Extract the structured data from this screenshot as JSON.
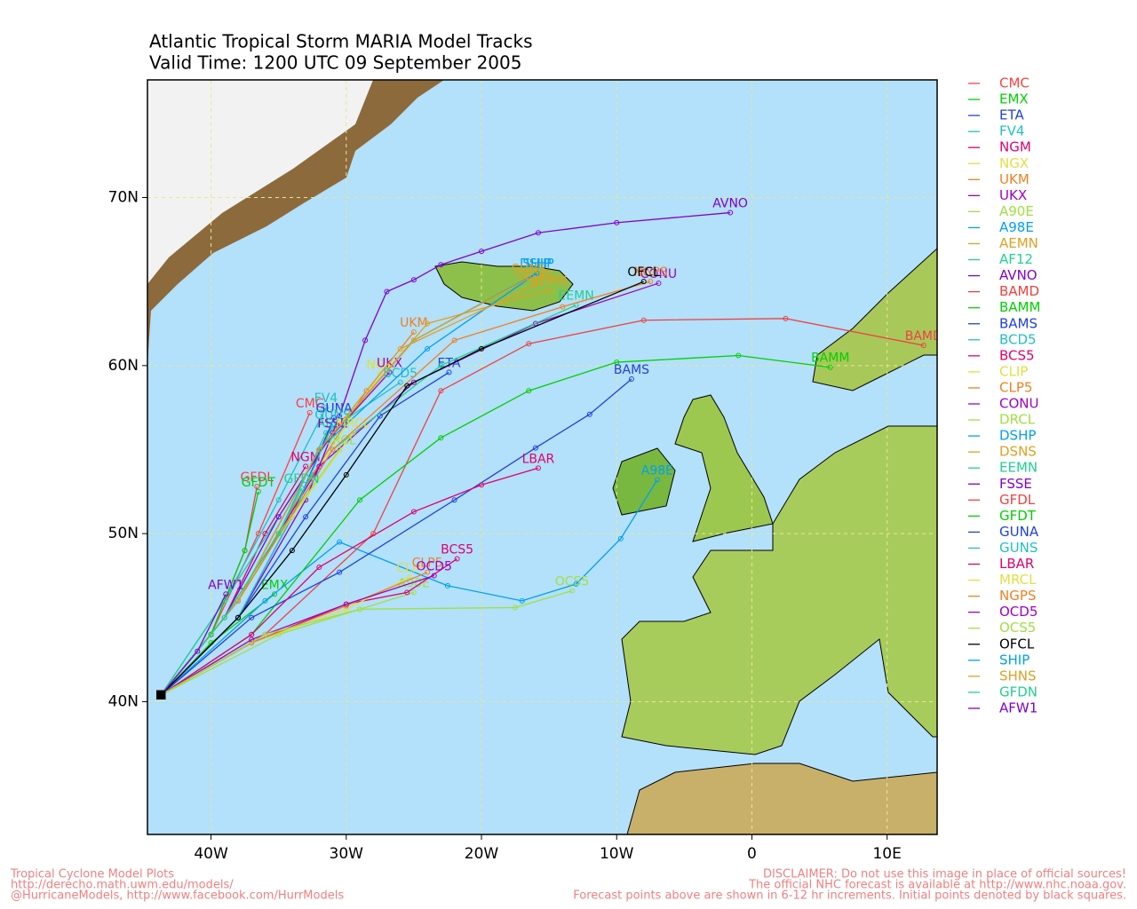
{
  "chart_data": {
    "type": "line",
    "title": "Atlantic Tropical Storm MARIA Model Tracks",
    "subtitle": "Valid Time: 1200 UTC 09 September 2005",
    "xlim": [
      -44.7,
      13.7
    ],
    "ylim": [
      32.1,
      77.0
    ],
    "xticks": [
      {
        "value": -40,
        "label": "40W"
      },
      {
        "value": -30,
        "label": "30W"
      },
      {
        "value": -20,
        "label": "20W"
      },
      {
        "value": -10,
        "label": "10W"
      },
      {
        "value": 0,
        "label": "0"
      },
      {
        "value": 10,
        "label": "10E"
      }
    ],
    "yticks": [
      {
        "value": 40,
        "label": "40N"
      },
      {
        "value": 50,
        "label": "50N"
      },
      {
        "value": 60,
        "label": "60N"
      },
      {
        "value": 70,
        "label": "70N"
      }
    ],
    "grid": true,
    "series": [
      {
        "name": "CMC",
        "color": "#ff4040",
        "x": [
          -43.7,
          -40,
          -36.5,
          -32.7
        ],
        "y": [
          40.4,
          44,
          50,
          57.2
        ]
      },
      {
        "name": "EMX",
        "color": "#00d000",
        "x": [
          -43.7,
          -40,
          -35.3
        ],
        "y": [
          40.4,
          43.5,
          46.4
        ]
      },
      {
        "name": "ETA",
        "color": "#2040e0",
        "x": [
          -43.7,
          -38,
          -33,
          -27.5,
          -22.4
        ],
        "y": [
          40.4,
          45,
          51,
          57,
          59.6
        ]
      },
      {
        "name": "FV4",
        "color": "#20c0c0",
        "x": [
          -43.7,
          -39,
          -35,
          -31.5
        ],
        "y": [
          40.4,
          46,
          52,
          57.5
        ]
      },
      {
        "name": "NGM",
        "color": "#e0006a",
        "x": [
          -43.7,
          -39,
          -36,
          -33
        ],
        "y": [
          40.4,
          45,
          50,
          54
        ]
      },
      {
        "name": "NGX",
        "color": "#e0e040",
        "x": [
          -43.7,
          -38,
          -32,
          -27.5
        ],
        "y": [
          40.4,
          46,
          54,
          59.5
        ]
      },
      {
        "name": "UKM",
        "color": "#f08020",
        "x": [
          -43.7,
          -38,
          -32.5,
          -28.5,
          -25
        ],
        "y": [
          40.4,
          46,
          53.5,
          58.5,
          62
        ]
      },
      {
        "name": "UKX",
        "color": "#a000c0",
        "x": [
          -43.7,
          -38,
          -32,
          -26.8
        ],
        "y": [
          40.4,
          46,
          55,
          59.6
        ]
      },
      {
        "name": "A90E",
        "color": "#a0e040",
        "x": [
          -43.7,
          -35,
          -29,
          -25
        ],
        "y": [
          40.4,
          44,
          45.5,
          46.5
        ]
      },
      {
        "name": "A98E",
        "color": "#00a0f0",
        "x": [
          -43.7,
          -36,
          -30.5,
          -22.5,
          -17,
          -13,
          -9.7,
          -7
        ],
        "y": [
          40.4,
          46,
          49.5,
          46.9,
          46,
          47,
          49.7,
          53.2
        ]
      },
      {
        "name": "AEMN",
        "color": "#e0a020",
        "x": [
          -43.7,
          -38,
          -32,
          -24,
          -15
        ],
        "y": [
          40.4,
          46,
          55,
          62.5,
          64.5
        ]
      },
      {
        "name": "AF12",
        "color": "#20d090",
        "x": [
          -43.7,
          -39,
          -35,
          -31
        ],
        "y": [
          40.4,
          46,
          51,
          56
        ]
      },
      {
        "name": "AVNO",
        "color": "#8000d0",
        "x": [
          -43.7,
          -38,
          -33,
          -30.5,
          -28.6,
          -27,
          -25,
          -23,
          -20,
          -15.8,
          -10,
          -1.6
        ],
        "y": [
          40.4,
          45,
          52,
          57,
          61.5,
          64.4,
          65.1,
          66,
          66.8,
          67.9,
          68.5,
          69.1
        ]
      },
      {
        "name": "BAMD",
        "color": "#f04040",
        "x": [
          -43.7,
          -36,
          -28,
          -23,
          -16.5,
          -8,
          2.5,
          12.7
        ],
        "y": [
          40.4,
          44,
          50,
          58.5,
          61.3,
          62.7,
          62.8,
          61.2
        ]
      },
      {
        "name": "BAMM",
        "color": "#00d000",
        "x": [
          -43.7,
          -37,
          -29,
          -23,
          -16.5,
          -10,
          -1,
          5.8
        ],
        "y": [
          40.4,
          44,
          52,
          55.7,
          58.5,
          60.2,
          60.6,
          59.9
        ]
      },
      {
        "name": "BAMS",
        "color": "#2040e0",
        "x": [
          -43.7,
          -37,
          -30.5,
          -22,
          -16,
          -12,
          -8.9
        ],
        "y": [
          40.4,
          45,
          47.7,
          52,
          55.1,
          57.1,
          59.2
        ]
      },
      {
        "name": "BCD5",
        "color": "#20c0c0",
        "x": [
          -43.7,
          -39,
          -35,
          -31.5,
          -26
        ],
        "y": [
          40.4,
          45,
          50,
          56,
          59
        ]
      },
      {
        "name": "BCS5",
        "color": "#e0006a",
        "x": [
          -43.7,
          -37,
          -30,
          -25.5,
          -21.8
        ],
        "y": [
          40.4,
          43.5,
          45.8,
          46.5,
          48.5
        ]
      },
      {
        "name": "CLIP",
        "color": "#e0e040",
        "x": [
          -43.7,
          -37,
          -30,
          -25.3
        ],
        "y": [
          40.4,
          43.5,
          45.5,
          47.4
        ]
      },
      {
        "name": "CLP5",
        "color": "#f08020",
        "x": [
          -43.7,
          -37,
          -30,
          -24
        ],
        "y": [
          40.4,
          43.5,
          45.7,
          47.7
        ]
      },
      {
        "name": "CONU",
        "color": "#a000c0",
        "x": [
          -43.7,
          -38,
          -32,
          -25,
          -16,
          -6.9
        ],
        "y": [
          40.4,
          46,
          54,
          59,
          62.5,
          64.9
        ]
      },
      {
        "name": "DRCL",
        "color": "#a0e040",
        "x": [
          -43.7,
          -39,
          -35,
          -30.5
        ],
        "y": [
          40.4,
          45,
          50,
          55
        ]
      },
      {
        "name": "DSHP",
        "color": "#00a0f0",
        "x": [
          -43.7,
          -38,
          -32,
          -24,
          -15.9
        ],
        "y": [
          40.4,
          46,
          55,
          61,
          65.5
        ]
      },
      {
        "name": "DSNS",
        "color": "#e0a020",
        "x": [
          -43.7,
          -38,
          -32,
          -26,
          -16
        ],
        "y": [
          40.4,
          46,
          55,
          61,
          64.8
        ]
      },
      {
        "name": "EEMN",
        "color": "#20d090",
        "x": [
          -43.7,
          -38,
          -31,
          -23,
          -13
        ],
        "y": [
          40.4,
          46,
          55,
          60,
          63.6
        ]
      },
      {
        "name": "FSSE",
        "color": "#8000d0",
        "x": [
          -43.7,
          -39,
          -35,
          -31
        ],
        "y": [
          40.4,
          45,
          51,
          56
        ]
      },
      {
        "name": "GFDL",
        "color": "#f04040",
        "x": [
          -43.7,
          -40,
          -37.5,
          -36.6
        ],
        "y": [
          40.4,
          44,
          49,
          52.8
        ]
      },
      {
        "name": "GFDT",
        "color": "#00d000",
        "x": [
          -43.7,
          -40,
          -37.5,
          -36.5
        ],
        "y": [
          40.4,
          44,
          49,
          52.5
        ]
      },
      {
        "name": "GUNA",
        "color": "#2040e0",
        "x": [
          -43.7,
          -38,
          -34,
          -30.9
        ],
        "y": [
          40.4,
          45,
          51,
          56.9
        ]
      },
      {
        "name": "GUNS",
        "color": "#20c0c0",
        "x": [
          -43.7,
          -38,
          -34,
          -31
        ],
        "y": [
          40.4,
          45,
          51,
          56.5
        ]
      },
      {
        "name": "LBAR",
        "color": "#e0006a",
        "x": [
          -43.7,
          -37,
          -32,
          -25,
          -20,
          -15.8
        ],
        "y": [
          40.4,
          44,
          48,
          51.3,
          52.9,
          53.9
        ]
      },
      {
        "name": "MRCL",
        "color": "#e0e040",
        "x": [
          -43.7,
          -39,
          -34,
          -29.5
        ],
        "y": [
          40.4,
          45,
          51,
          56
        ]
      },
      {
        "name": "NGPS",
        "color": "#f08020",
        "x": [
          -43.7,
          -38,
          -31,
          -22,
          -14,
          -7.5
        ],
        "y": [
          40.4,
          46,
          55,
          61.5,
          63.5,
          65
        ]
      },
      {
        "name": "OCD5",
        "color": "#a000c0",
        "x": [
          -43.7,
          -37,
          -30,
          -23.5
        ],
        "y": [
          40.4,
          43.7,
          45.8,
          47.5
        ]
      },
      {
        "name": "OCS5",
        "color": "#a0e040",
        "x": [
          -43.7,
          -36,
          -29,
          -17.5,
          -13.3
        ],
        "y": [
          40.4,
          44,
          45.5,
          45.6,
          46.6
        ]
      },
      {
        "name": "OFCL",
        "color": "#000000",
        "x": [
          -43.7,
          -38,
          -34,
          -30,
          -25.5,
          -20,
          -8
        ],
        "y": [
          40.4,
          45,
          49,
          53.5,
          58.8,
          61,
          65
        ]
      },
      {
        "name": "SHIP",
        "color": "#00a0f0",
        "x": [
          -43.7,
          -38,
          -32,
          -25,
          -15.9
        ],
        "y": [
          40.4,
          46,
          55,
          61.5,
          65.5
        ]
      },
      {
        "name": "SHNS",
        "color": "#e0a020",
        "x": [
          -43.7,
          -38,
          -32,
          -25,
          -16.5
        ],
        "y": [
          40.4,
          46,
          55,
          61.5,
          65.2
        ]
      },
      {
        "name": "GFDN",
        "color": "#20d090",
        "x": [
          -43.7,
          -39,
          -35,
          -33.3
        ],
        "y": [
          40.4,
          45,
          50,
          52.7
        ]
      },
      {
        "name": "AFW1",
        "color": "#8000d0",
        "x": [
          -43.7,
          -41,
          -38.9
        ],
        "y": [
          40.4,
          43,
          46.4
        ]
      }
    ]
  },
  "footer": {
    "left": [
      "Tropical Cyclone Model Plots",
      "http://derecho.math.uwm.edu/models/",
      "@HurricaneModels, http://www.facebook.com/HurrModels"
    ],
    "right": [
      "DISCLAIMER: Do not use this image in place of official sources!",
      "The official NHC forecast is available at http://www.nhc.noaa.gov.",
      "Forecast points above are shown in 6-12 hr increments. Initial points denoted by black squares."
    ]
  }
}
